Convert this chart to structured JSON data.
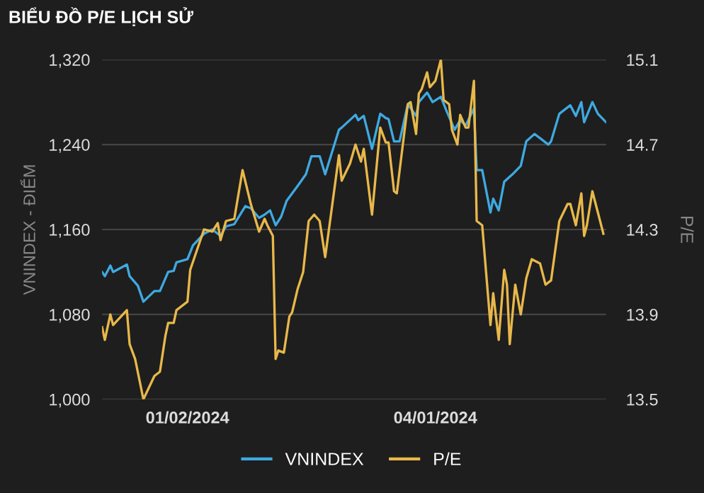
{
  "chart_data": {
    "type": "line",
    "title": "BIỂU ĐỒ P/E LỊCH SỬ",
    "ylabel": "VNINDEX - ĐIỂM",
    "y2label": "P/E",
    "xlim": [
      "2023-12-02",
      "2024-06-02"
    ],
    "xticks": [
      {
        "value": "2024-01-02",
        "label": "01/02/2024"
      },
      {
        "value": "2024-04-01",
        "label": "04/01/2024"
      }
    ],
    "ylim": [
      1000,
      1320
    ],
    "yticks": [
      {
        "value": 1000,
        "label": "1,000"
      },
      {
        "value": 1080,
        "label": "1,080"
      },
      {
        "value": 1160,
        "label": "1,160"
      },
      {
        "value": 1240,
        "label": "1,240"
      },
      {
        "value": 1320,
        "label": "1,320"
      }
    ],
    "y2lim": [
      13.5,
      15.1
    ],
    "y2ticks": [
      13.5,
      13.9,
      14.3,
      14.7,
      15.1
    ],
    "grid": "y",
    "legend": "bottom",
    "marker": "none",
    "line_style": "solid",
    "series": [
      {
        "name": "VNINDEX",
        "color": "#3fa9e0",
        "x": [
          "2023-12-02",
          "2023-12-03",
          "2023-12-05",
          "2023-12-06",
          "2023-12-11",
          "2023-12-12",
          "2023-12-15",
          "2023-12-17",
          "2023-12-21",
          "2023-12-23",
          "2023-12-26",
          "2023-12-28",
          "2023-12-29",
          "2024-01-02",
          "2024-01-04",
          "2024-01-08",
          "2024-01-11",
          "2024-01-14",
          "2024-01-16",
          "2024-01-19",
          "2024-01-23",
          "2024-01-25",
          "2024-01-28",
          "2024-01-30",
          "2024-02-01",
          "2024-02-03",
          "2024-02-05",
          "2024-02-07",
          "2024-02-11",
          "2024-02-14",
          "2024-02-16",
          "2024-02-19",
          "2024-02-21",
          "2024-02-26",
          "2024-02-27",
          "2024-03-03",
          "2024-03-04",
          "2024-03-06",
          "2024-03-09",
          "2024-03-12",
          "2024-03-14",
          "2024-03-15",
          "2024-03-17",
          "2024-03-19",
          "2024-03-22",
          "2024-03-25",
          "2024-03-26",
          "2024-03-29",
          "2024-03-31",
          "2024-04-03",
          "2024-04-05",
          "2024-04-08",
          "2024-04-10",
          "2024-04-12",
          "2024-04-15",
          "2024-04-16",
          "2024-04-18",
          "2024-04-21",
          "2024-04-22",
          "2024-04-24",
          "2024-04-26",
          "2024-04-29",
          "2024-05-02",
          "2024-05-04",
          "2024-05-07",
          "2024-05-12",
          "2024-05-13",
          "2024-05-16",
          "2024-05-20",
          "2024-05-22",
          "2024-05-24",
          "2024-05-25",
          "2024-05-28",
          "2024-05-30",
          "2024-06-02"
        ],
        "values": [
          1120,
          1116,
          1126,
          1120,
          1127,
          1116,
          1107,
          1092,
          1102,
          1102,
          1120,
          1121,
          1129,
          1132,
          1145,
          1156,
          1160,
          1154,
          1163,
          1165,
          1182,
          1180,
          1171,
          1174,
          1178,
          1164,
          1172,
          1187,
          1201,
          1212,
          1229,
          1229,
          1212,
          1254,
          1256,
          1268,
          1263,
          1267,
          1236,
          1269,
          1265,
          1264,
          1243,
          1243,
          1278,
          1267,
          1280,
          1289,
          1280,
          1285,
          1272,
          1254,
          1263,
          1258,
          1274,
          1216,
          1216,
          1176,
          1189,
          1178,
          1205,
          1212,
          1220,
          1243,
          1250,
          1240,
          1243,
          1269,
          1277,
          1267,
          1280,
          1261,
          1280,
          1269,
          1261
        ]
      },
      {
        "name": "P/E",
        "color": "#e8b84a",
        "axis": "y2",
        "x": [
          "2023-12-02",
          "2023-12-03",
          "2023-12-05",
          "2023-12-06",
          "2023-12-11",
          "2023-12-12",
          "2023-12-14",
          "2023-12-17",
          "2023-12-21",
          "2023-12-23",
          "2023-12-25",
          "2023-12-26",
          "2023-12-28",
          "2023-12-29",
          "2024-01-02",
          "2024-01-03",
          "2024-01-08",
          "2024-01-11",
          "2024-01-13",
          "2024-01-14",
          "2024-01-16",
          "2024-01-19",
          "2024-01-22",
          "2024-01-25",
          "2024-01-28",
          "2024-01-30",
          "2024-01-31",
          "2024-02-02",
          "2024-02-03",
          "2024-02-04",
          "2024-02-06",
          "2024-02-08",
          "2024-02-09",
          "2024-02-11",
          "2024-02-13",
          "2024-02-15",
          "2024-02-17",
          "2024-02-19",
          "2024-02-21",
          "2024-02-26",
          "2024-02-27",
          "2024-03-01",
          "2024-03-03",
          "2024-03-05",
          "2024-03-06",
          "2024-03-09",
          "2024-03-12",
          "2024-03-14",
          "2024-03-15",
          "2024-03-17",
          "2024-03-18",
          "2024-03-22",
          "2024-03-23",
          "2024-03-25",
          "2024-03-26",
          "2024-03-27",
          "2024-03-29",
          "2024-03-30",
          "2024-04-01",
          "2024-04-03",
          "2024-04-04",
          "2024-04-06",
          "2024-04-07",
          "2024-04-09",
          "2024-04-10",
          "2024-04-12",
          "2024-04-13",
          "2024-04-15",
          "2024-04-16",
          "2024-04-18",
          "2024-04-21",
          "2024-04-22",
          "2024-04-24",
          "2024-04-26",
          "2024-04-27",
          "2024-04-28",
          "2024-04-30",
          "2024-05-02",
          "2024-05-04",
          "2024-05-06",
          "2024-05-09",
          "2024-05-11",
          "2024-05-13",
          "2024-05-16",
          "2024-05-19",
          "2024-05-20",
          "2024-05-22",
          "2024-05-24",
          "2024-05-25",
          "2024-05-26",
          "2024-05-28",
          "2024-05-30",
          "2024-06-01"
        ],
        "values": [
          13.84,
          13.78,
          13.9,
          13.85,
          13.92,
          13.76,
          13.69,
          13.5,
          13.61,
          13.63,
          13.8,
          13.86,
          13.86,
          13.92,
          13.96,
          14.11,
          14.3,
          14.29,
          14.33,
          14.25,
          14.34,
          14.35,
          14.58,
          14.42,
          14.29,
          14.35,
          14.32,
          14.27,
          13.69,
          13.73,
          13.72,
          13.89,
          13.91,
          14.02,
          14.1,
          14.34,
          14.37,
          14.34,
          14.17,
          14.65,
          14.53,
          14.61,
          14.7,
          14.62,
          14.68,
          14.37,
          14.78,
          14.71,
          14.71,
          14.48,
          14.47,
          14.89,
          14.9,
          14.75,
          14.94,
          14.96,
          15.04,
          14.97,
          15.0,
          15.1,
          14.91,
          14.89,
          14.77,
          14.7,
          14.84,
          14.78,
          14.78,
          15.0,
          14.34,
          14.32,
          13.85,
          14.0,
          13.78,
          14.11,
          14.04,
          13.76,
          14.04,
          13.9,
          14.07,
          14.16,
          14.14,
          14.04,
          14.06,
          14.34,
          14.42,
          14.42,
          14.32,
          14.47,
          14.27,
          14.32,
          14.48,
          14.38,
          14.28
        ]
      }
    ]
  }
}
